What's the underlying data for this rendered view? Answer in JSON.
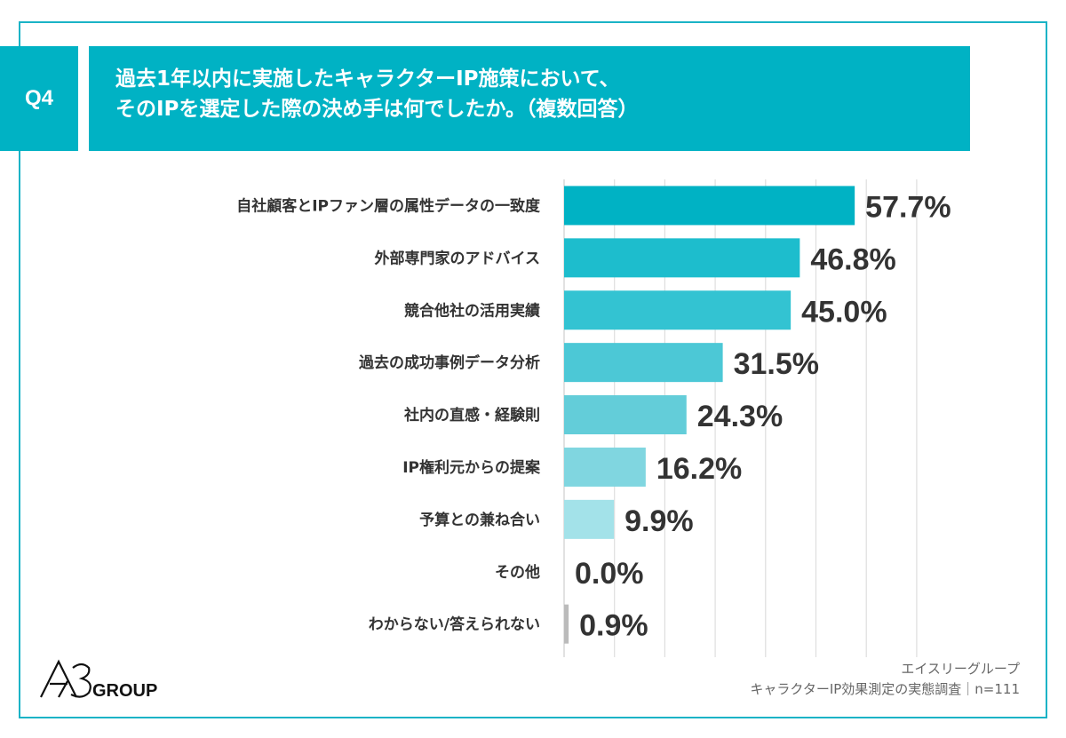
{
  "question": {
    "number": "Q4",
    "title_line1": "過去1年以内に実施したキャラクターIP施策において、",
    "title_line2": "そのIPを選定した際の決め手は何でしたか。（複数回答）"
  },
  "chart_data": {
    "type": "bar",
    "orientation": "horizontal",
    "categories": [
      "自社顧客とIPファン層の属性データの一致度",
      "外部専門家のアドバイス",
      "競合他社の活用実績",
      "過去の成功事例データ分析",
      "社内の直感・経験則",
      "IP権利元からの提案",
      "予算との兼ね合い",
      "その他",
      "わからない/答えられない"
    ],
    "values": [
      57.7,
      46.8,
      45.0,
      31.5,
      24.3,
      16.2,
      9.9,
      0.0,
      0.9
    ],
    "labels": [
      "57.7%",
      "46.8%",
      "45.0%",
      "31.5%",
      "24.3%",
      "16.2%",
      "9.9%",
      "0.0%",
      "0.9%"
    ],
    "unit": "%",
    "xlim": [
      0,
      70
    ],
    "grid": true,
    "colors": [
      "#00b2c4",
      "#1dbdcd",
      "#33c3d2",
      "#4cc8d6",
      "#63cdd9",
      "#80d6e0",
      "#a3e2e9",
      "#a3e2e9",
      "#bbbbbb"
    ]
  },
  "source": {
    "line1": "エイスリーグループ",
    "line2": "キャラクターIP効果測定の実態調査｜n=111"
  },
  "logo": {
    "text": "A3GROUP"
  },
  "colors": {
    "accent": "#00b2c4",
    "frame": "#1ab3c6"
  }
}
